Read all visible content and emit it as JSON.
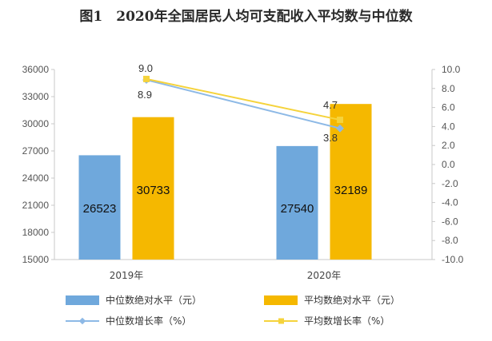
{
  "title": "图1　2020年全国居民人均可支配收入平均数与中位数",
  "colors": {
    "median_bar": "#6FA8DC",
    "mean_bar": "#F5B800",
    "median_line": "#8DB9E6",
    "mean_line": "#F5D33C"
  },
  "chart_data": {
    "type": "bar",
    "categories": [
      "2019年",
      "2020年"
    ],
    "y_left": {
      "range": [
        15000,
        36000
      ],
      "ticks": [
        "15000",
        "18000",
        "21000",
        "24000",
        "27000",
        "30000",
        "33000",
        "36000"
      ]
    },
    "y_right": {
      "range": [
        -10.0,
        10.0
      ],
      "ticks": [
        "-10.0",
        "-8.0",
        "-6.0",
        "-4.0",
        "-2.0",
        "0.0",
        "2.0",
        "4.0",
        "6.0",
        "8.0",
        "10.0"
      ]
    },
    "bars": [
      {
        "name": "中位数绝对水平（元）",
        "values": [
          26523,
          27540
        ],
        "labels": [
          "26523",
          "27540"
        ]
      },
      {
        "name": "平均数绝对水平（元）",
        "values": [
          30733,
          32189
        ],
        "labels": [
          "30733",
          "32189"
        ]
      }
    ],
    "lines": [
      {
        "name": "中位数增长率（%）",
        "values": [
          8.9,
          3.8
        ],
        "labels": [
          "8.9",
          "3.8"
        ]
      },
      {
        "name": "平均数增长率（%）",
        "values": [
          9.0,
          4.7
        ],
        "labels": [
          "9.0",
          "4.7"
        ]
      }
    ],
    "legend_position": "bottom"
  }
}
